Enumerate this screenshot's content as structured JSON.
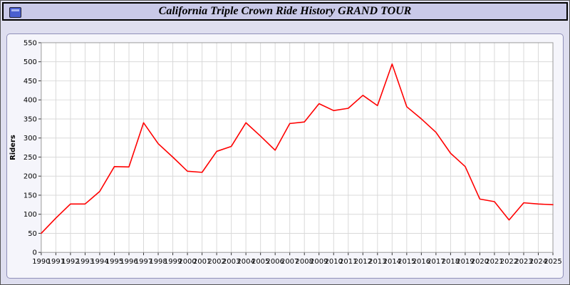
{
  "header": {
    "title": "California Triple Crown Ride History GRAND TOUR",
    "icon": "app-window-icon"
  },
  "colors": {
    "page_background": "#dedeef",
    "titlebar_background": "#c9c9e8",
    "panel_background": "#f5f5fb",
    "plot_background": "#ffffff",
    "grid": "#d9d9d9",
    "line": "#ff0000",
    "text": "#000000"
  },
  "chart_data": {
    "type": "line",
    "title": "California Triple Crown Ride History GRAND TOUR",
    "xlabel": "",
    "ylabel": "Riders",
    "ylim": [
      0,
      550
    ],
    "ytick_step": 50,
    "grid": true,
    "legend": "none",
    "x": [
      1990,
      1991,
      1992,
      1993,
      1994,
      1995,
      1996,
      1997,
      1998,
      1999,
      2000,
      2001,
      2002,
      2003,
      2004,
      2005,
      2006,
      2007,
      2008,
      2009,
      2010,
      2011,
      2012,
      2013,
      2014,
      2015,
      2016,
      2017,
      2018,
      2019,
      2020,
      2021,
      2022,
      2023,
      2024,
      2025
    ],
    "series": [
      {
        "name": "Riders",
        "color": "#ff0000",
        "values": [
          50,
          90,
          127,
          127,
          160,
          225,
          224,
          340,
          285,
          250,
          213,
          210,
          265,
          278,
          340,
          305,
          268,
          338,
          342,
          390,
          372,
          378,
          412,
          385,
          494,
          382,
          350,
          315,
          260,
          225,
          140,
          133,
          85,
          130,
          127,
          125
        ]
      }
    ]
  }
}
